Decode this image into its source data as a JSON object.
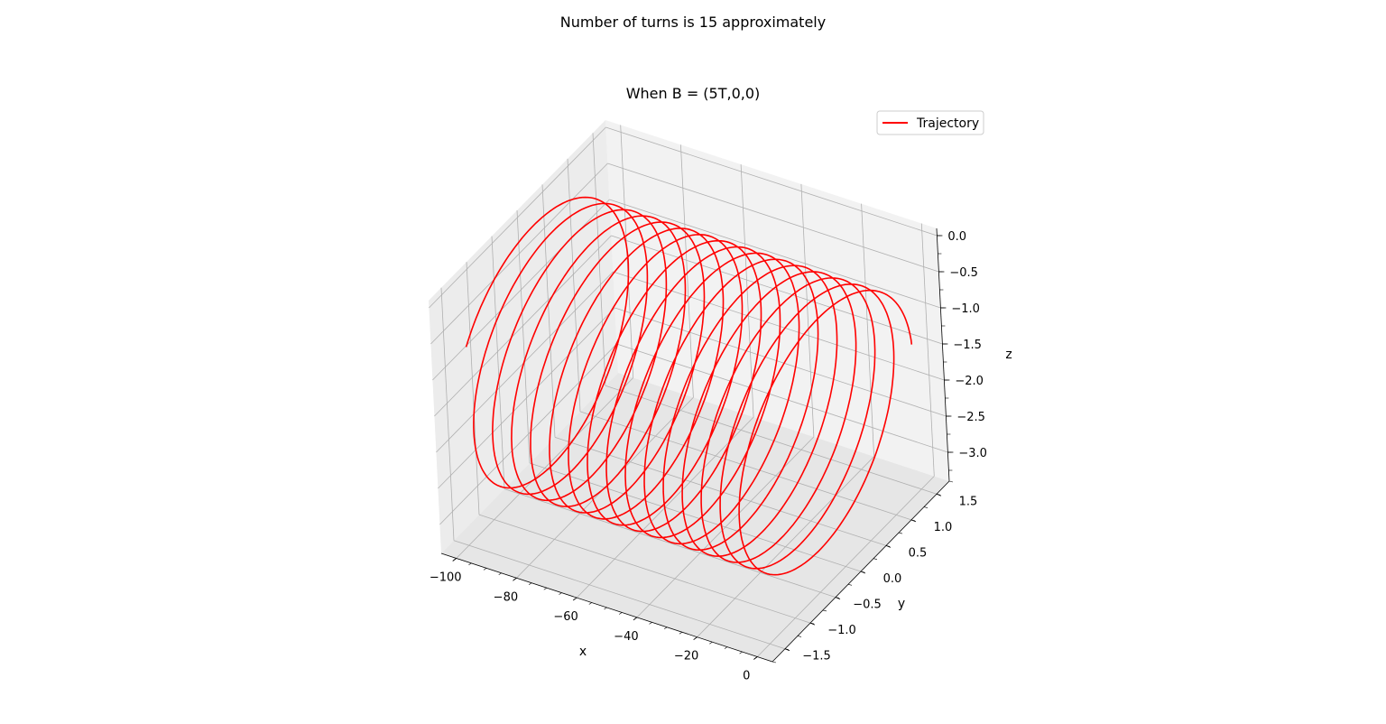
{
  "figure": {
    "suptitle": "Number of turns is 15 approximately"
  },
  "chart_data": {
    "type": "line3d",
    "title": "When B = (5T,0,0)",
    "xlabel": "x",
    "ylabel": "y",
    "zlabel": "z",
    "xlim": [
      -105,
      5
    ],
    "ylim": [
      -1.75,
      1.75
    ],
    "zlim": [
      -3.4,
      0.1
    ],
    "xticks": [
      -100,
      -80,
      -60,
      -40,
      -20,
      0
    ],
    "xtick_labels": [
      "−100",
      "−80",
      "−60",
      "−40",
      "−20",
      "0"
    ],
    "yticks": [
      -1.5,
      -1.0,
      -0.5,
      0.0,
      0.5,
      1.0,
      1.5
    ],
    "ytick_labels": [
      "−1.5",
      "−1.0",
      "−0.5",
      "0.0",
      "0.5",
      "1.0",
      "1.5"
    ],
    "zticks": [
      -3.0,
      -2.5,
      -2.0,
      -1.5,
      -1.0,
      -0.5,
      0.0
    ],
    "ztick_labels": [
      "−3.0",
      "−2.5",
      "−2.0",
      "−1.5",
      "−1.0",
      "−0.5",
      "0.0"
    ],
    "grid": true,
    "legend": {
      "position": "top-right",
      "entries": [
        "Trajectory"
      ]
    },
    "series": [
      {
        "name": "Trajectory",
        "color": "#ff0000",
        "kind": "helix",
        "axis": "x",
        "x_start": -100,
        "x_end": -3,
        "turns": 15.4,
        "radius": 1.62,
        "y_center": 0.0,
        "z_center": -1.62,
        "starts_near": [
          -100,
          -1.6,
          -0.6
        ],
        "ends_near": [
          -3,
          1.0,
          -1.0
        ]
      }
    ]
  }
}
